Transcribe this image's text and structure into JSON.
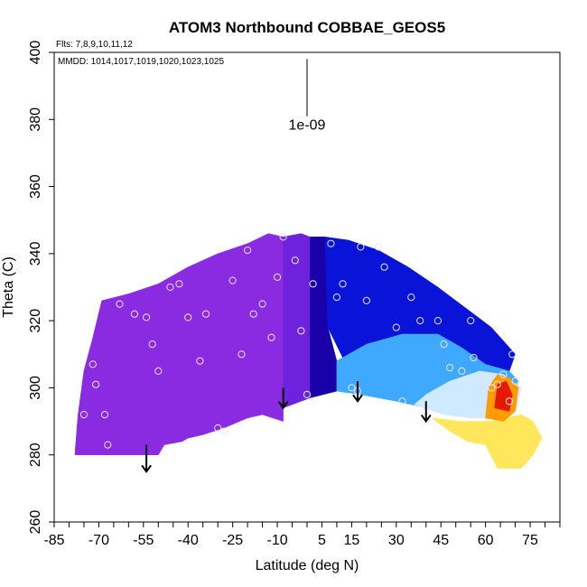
{
  "chart_data": {
    "type": "heatmap",
    "title": "ATOM3 Northbound COBBAE_GEOS5",
    "notes": {
      "flights": "Flts: 7,8,9,10,11,12",
      "dates": "MMDD: 1014,1017,1019,1020,1023,1025"
    },
    "xlabel": "Latitude (deg N)",
    "ylabel": "Theta (C)",
    "xlim": [
      -85,
      85
    ],
    "ylim": [
      260,
      400
    ],
    "x_ticks": [
      -85,
      -70,
      -55,
      -40,
      -25,
      -10,
      5,
      15,
      30,
      45,
      60,
      75
    ],
    "y_ticks": [
      260,
      280,
      300,
      320,
      340,
      360,
      380,
      400
    ],
    "contour_label": "1e-09",
    "contour_line": {
      "x": 0,
      "y_range": [
        382,
        398
      ]
    },
    "colors": {
      "violet": "#8a2be2",
      "indigo": "#6f22dc",
      "dark_blue": "#1a00a8",
      "blue": "#0a14d8",
      "light_blue": "#3fa9ff",
      "pale_blue": "#cfe9ff",
      "yellow": "#ffe65a",
      "orange": "#ff9a00",
      "red": "#e41a00"
    },
    "regions": [
      {
        "name": "southern-violet-field",
        "color": "violet",
        "polygon": [
          [
            -78,
            281
          ],
          [
            -77,
            292
          ],
          [
            -75,
            305
          ],
          [
            -72,
            315
          ],
          [
            -69,
            326
          ],
          [
            -60,
            328
          ],
          [
            -50,
            331
          ],
          [
            -40,
            336
          ],
          [
            -30,
            340
          ],
          [
            -20,
            343
          ],
          [
            -13,
            346
          ],
          [
            -8,
            345
          ],
          [
            -8,
            290
          ],
          [
            -15,
            292
          ],
          [
            -20,
            291
          ],
          [
            -28,
            288
          ],
          [
            -35,
            286
          ],
          [
            -40,
            285
          ],
          [
            -42,
            284
          ],
          [
            -48,
            283
          ],
          [
            -50,
            280
          ],
          [
            -60,
            280
          ],
          [
            -78,
            280
          ]
        ]
      },
      {
        "name": "mid-indigo-band",
        "color": "indigo",
        "polygon": [
          [
            -8,
            345
          ],
          [
            -2,
            346
          ],
          [
            1,
            345
          ],
          [
            1,
            297
          ],
          [
            -8,
            294
          ]
        ]
      },
      {
        "name": "equatorial-dark-blue",
        "color": "dark_blue",
        "polygon": [
          [
            1,
            345
          ],
          [
            6,
            345
          ],
          [
            7,
            318
          ],
          [
            10,
            308
          ],
          [
            10,
            299
          ],
          [
            1,
            297
          ]
        ]
      },
      {
        "name": "northern-blue-field",
        "color": "blue",
        "polygon": [
          [
            6,
            345
          ],
          [
            14,
            344
          ],
          [
            24,
            341
          ],
          [
            34,
            336
          ],
          [
            44,
            330
          ],
          [
            50,
            326
          ],
          [
            56,
            322
          ],
          [
            62,
            318
          ],
          [
            66,
            314
          ],
          [
            70,
            310
          ],
          [
            68,
            305
          ],
          [
            60,
            307
          ],
          [
            52,
            312
          ],
          [
            44,
            316
          ],
          [
            32,
            316
          ],
          [
            20,
            313
          ],
          [
            12,
            309
          ],
          [
            7,
            318
          ]
        ]
      },
      {
        "name": "northern-light-blue-zone",
        "color": "light_blue",
        "polygon": [
          [
            10,
            308
          ],
          [
            20,
            313
          ],
          [
            32,
            316
          ],
          [
            44,
            316
          ],
          [
            52,
            312
          ],
          [
            60,
            307
          ],
          [
            68,
            305
          ],
          [
            71,
            302
          ],
          [
            70,
            296
          ],
          [
            58,
            293
          ],
          [
            50,
            292
          ],
          [
            40,
            294
          ],
          [
            30,
            296
          ],
          [
            18,
            298
          ],
          [
            10,
            299
          ]
        ]
      },
      {
        "name": "northern-pale-blue-zone",
        "color": "pale_blue",
        "polygon": [
          [
            36,
            295
          ],
          [
            46,
            292
          ],
          [
            56,
            291
          ],
          [
            64,
            291
          ],
          [
            70,
            293
          ],
          [
            72,
            300
          ],
          [
            66,
            304
          ],
          [
            58,
            305
          ],
          [
            48,
            302
          ],
          [
            40,
            298
          ]
        ]
      },
      {
        "name": "northern-yellow-zone",
        "color": "yellow",
        "polygon": [
          [
            42,
            291
          ],
          [
            48,
            287
          ],
          [
            54,
            284
          ],
          [
            60,
            283
          ],
          [
            64,
            276
          ],
          [
            72,
            276
          ],
          [
            76,
            280
          ],
          [
            79,
            285
          ],
          [
            76,
            290
          ],
          [
            72,
            292
          ],
          [
            62,
            290
          ],
          [
            52,
            290
          ]
        ]
      },
      {
        "name": "northern-orange-core",
        "color": "orange",
        "polygon": [
          [
            60,
            291
          ],
          [
            61,
            300
          ],
          [
            64,
            304
          ],
          [
            68,
            303
          ],
          [
            71,
            300
          ],
          [
            70,
            293
          ],
          [
            66,
            290
          ]
        ]
      },
      {
        "name": "northern-red-core",
        "color": "red",
        "polygon": [
          [
            63,
            294
          ],
          [
            64,
            301
          ],
          [
            67,
            302
          ],
          [
            69,
            298
          ],
          [
            68,
            293
          ]
        ]
      }
    ],
    "points": [
      [
        -75,
        292
      ],
      [
        -72,
        307
      ],
      [
        -71,
        301
      ],
      [
        -68,
        292
      ],
      [
        -67,
        283
      ],
      [
        -63,
        325
      ],
      [
        -58,
        322
      ],
      [
        -54,
        321
      ],
      [
        -52,
        313
      ],
      [
        -50,
        305
      ],
      [
        -46,
        330
      ],
      [
        -43,
        331
      ],
      [
        -40,
        321
      ],
      [
        -36,
        308
      ],
      [
        -34,
        322
      ],
      [
        -30,
        288
      ],
      [
        -28,
        287
      ],
      [
        -25,
        332
      ],
      [
        -22,
        310
      ],
      [
        -20,
        341
      ],
      [
        -18,
        322
      ],
      [
        -15,
        325
      ],
      [
        -12,
        315
      ],
      [
        -10,
        333
      ],
      [
        -8,
        345
      ],
      [
        -4,
        338
      ],
      [
        -2,
        317
      ],
      [
        0,
        298
      ],
      [
        2,
        331
      ],
      [
        8,
        343
      ],
      [
        10,
        327
      ],
      [
        12,
        331
      ],
      [
        15,
        300
      ],
      [
        17,
        299
      ],
      [
        18,
        342
      ],
      [
        20,
        326
      ],
      [
        24,
        342
      ],
      [
        26,
        336
      ],
      [
        30,
        318
      ],
      [
        32,
        296
      ],
      [
        35,
        327
      ],
      [
        38,
        320
      ],
      [
        40,
        293
      ],
      [
        44,
        320
      ],
      [
        46,
        313
      ],
      [
        48,
        306
      ],
      [
        50,
        296
      ],
      [
        52,
        305
      ],
      [
        55,
        320
      ],
      [
        56,
        309
      ],
      [
        60,
        303
      ],
      [
        62,
        300
      ],
      [
        64,
        301
      ],
      [
        66,
        304
      ],
      [
        68,
        296
      ],
      [
        69,
        310
      ],
      [
        70,
        302
      ]
    ],
    "arrows": [
      {
        "x": -54,
        "y_from": 283,
        "y_to": 275
      },
      {
        "x": -8,
        "y_from": 300,
        "y_to": 294
      },
      {
        "x": 17,
        "y_from": 302,
        "y_to": 296
      },
      {
        "x": 40,
        "y_from": 296,
        "y_to": 290
      }
    ]
  }
}
